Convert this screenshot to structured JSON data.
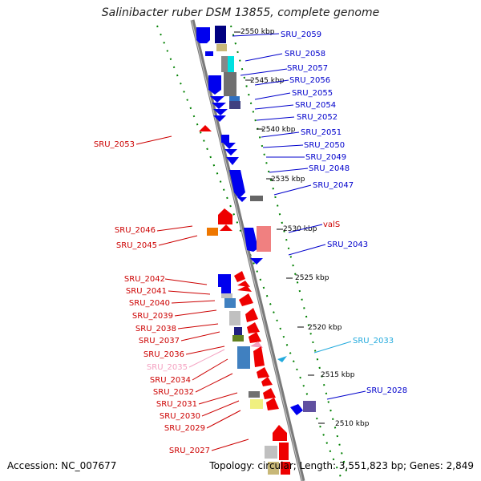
{
  "title": "Salinibacter ruber DSM 13855, complete genome",
  "footer": {
    "accession": "Accession: NC_007677",
    "info": "Topology: circular; Length: 3,551,823 bp; Genes: 2,849"
  },
  "colors": {
    "forward_strand": "#0000ff",
    "reverse_strand": "#ff0000",
    "label_forward": "#0000cc",
    "label_reverse": "#cc0000",
    "label_highlight_cyan": "#22aadd",
    "label_highlight_pink": "#f4a0c0",
    "backbone": "#808080",
    "ruler": "#008000"
  },
  "ticks": [
    "2550 kbp",
    "2545 kbp",
    "2540 kbp",
    "2535 kbp",
    "2530 kbp",
    "2525 kbp",
    "2520 kbp",
    "2515 kbp",
    "2510 kbp"
  ],
  "labels_right": [
    "SRU_2059",
    "SRU_2058",
    "SRU_2057",
    "SRU_2056",
    "SRU_2055",
    "SRU_2054",
    "SRU_2052",
    "SRU_2051",
    "SRU_2050",
    "SRU_2049",
    "SRU_2048",
    "SRU_2047",
    "valS",
    "SRU_2043",
    "SRU_2033",
    "SRU_2028"
  ],
  "labels_left": [
    "SRU_2053",
    "SRU_2046",
    "SRU_2045",
    "SRU_2042",
    "SRU_2041",
    "SRU_2040",
    "SRU_2039",
    "SRU_2038",
    "SRU_2037",
    "SRU_2036",
    "SRU_2035",
    "SRU_2034",
    "SRU_2032",
    "SRU_2031",
    "SRU_2030",
    "SRU_2029",
    "SRU_2027"
  ]
}
